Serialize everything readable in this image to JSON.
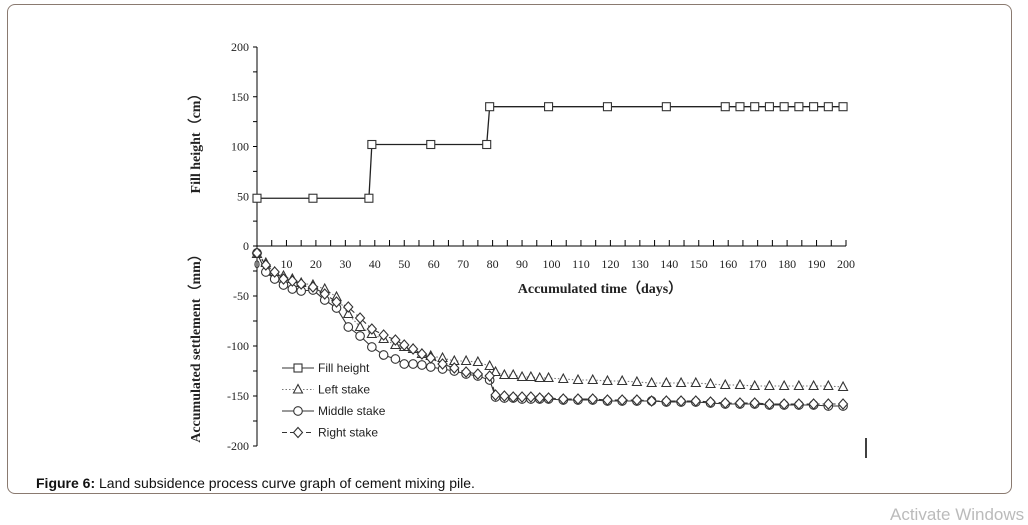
{
  "caption": {
    "label": "Figure 6:",
    "text": " Land subsidence process curve graph of cement mixing pile."
  },
  "watermark": "Activate Windows",
  "chart_data": [
    {
      "type": "line",
      "ylabel": "Fill height（cm）",
      "ylim": [
        0,
        200
      ],
      "yticks": [
        0,
        50,
        100,
        150,
        200
      ],
      "xlim": [
        0,
        200
      ],
      "grid": false,
      "series": [
        {
          "name": "Fill height",
          "marker": "square",
          "x": [
            0,
            19,
            38,
            39,
            59,
            78,
            79,
            99,
            119,
            139,
            159,
            164,
            169,
            174,
            179,
            184,
            189,
            194,
            199
          ],
          "y": [
            48,
            48,
            48,
            102,
            102,
            102,
            140,
            140,
            140,
            140,
            140,
            140,
            140,
            140,
            140,
            140,
            140,
            140,
            140
          ]
        }
      ]
    },
    {
      "type": "line",
      "xlabel": "Accumulated time（days）",
      "ylabel": "Accumulated settlement（mm）",
      "xlim": [
        0,
        200
      ],
      "xticks": [
        0,
        10,
        20,
        30,
        40,
        50,
        60,
        70,
        80,
        90,
        100,
        110,
        120,
        130,
        140,
        150,
        160,
        170,
        180,
        190,
        200
      ],
      "ylim": [
        -200,
        0
      ],
      "yticks": [
        0,
        -50,
        -100,
        -150,
        -200
      ],
      "grid": false,
      "legend": "bottom-left",
      "legend_entries": [
        "Fill height",
        "Left stake",
        "Middle stake",
        "Right stake"
      ],
      "x": [
        0,
        3,
        6,
        9,
        12,
        15,
        19,
        23,
        27,
        31,
        35,
        39,
        43,
        47,
        50,
        53,
        56,
        59,
        63,
        67,
        71,
        75,
        79,
        81,
        84,
        87,
        90,
        93,
        96,
        99,
        104,
        109,
        114,
        119,
        124,
        129,
        134,
        139,
        144,
        149,
        154,
        159,
        164,
        169,
        174,
        179,
        184,
        189,
        194,
        199
      ],
      "series": [
        {
          "name": "Left stake",
          "marker": "triangle",
          "line": "dotted",
          "values": [
            -8,
            -17,
            -26,
            -30,
            -33,
            -37,
            -39,
            -43,
            -51,
            -68,
            -81,
            -88,
            -93,
            -99,
            -101,
            -103,
            -108,
            -110,
            -112,
            -115,
            -115,
            -116,
            -120,
            -126,
            -129,
            -129,
            -131,
            -131,
            -132,
            -132,
            -133,
            -134,
            -134,
            -135,
            -135,
            -136,
            -137,
            -137,
            -137,
            -137,
            -138,
            -139,
            -139,
            -140,
            -140,
            -140,
            -140,
            -140,
            -140,
            -141
          ]
        },
        {
          "name": "Middle stake",
          "marker": "circle",
          "line": "solid",
          "values": [
            -7,
            -26,
            -33,
            -39,
            -43,
            -45,
            -44,
            -54,
            -62,
            -81,
            -90,
            -101,
            -109,
            -113,
            -118,
            -118,
            -119,
            -121,
            -123,
            -125,
            -128,
            -130,
            -134,
            -151,
            -152,
            -152,
            -153,
            -153,
            -153,
            -153,
            -154,
            -154,
            -154,
            -155,
            -155,
            -155,
            -155,
            -156,
            -156,
            -156,
            -157,
            -158,
            -158,
            -158,
            -159,
            -159,
            -159,
            -159,
            -160,
            -160
          ]
        },
        {
          "name": "Right stake",
          "marker": "diamond",
          "line": "dashed",
          "values": [
            -7,
            -19,
            -26,
            -33,
            -35,
            -38,
            -41,
            -48,
            -56,
            -61,
            -72,
            -83,
            -89,
            -94,
            -99,
            -103,
            -108,
            -112,
            -118,
            -122,
            -126,
            -128,
            -130,
            -149,
            -150,
            -151,
            -151,
            -151,
            -152,
            -152,
            -153,
            -153,
            -153,
            -154,
            -154,
            -154,
            -155,
            -155,
            -155,
            -155,
            -156,
            -157,
            -157,
            -157,
            -158,
            -158,
            -158,
            -158,
            -158,
            -158
          ]
        }
      ]
    }
  ]
}
